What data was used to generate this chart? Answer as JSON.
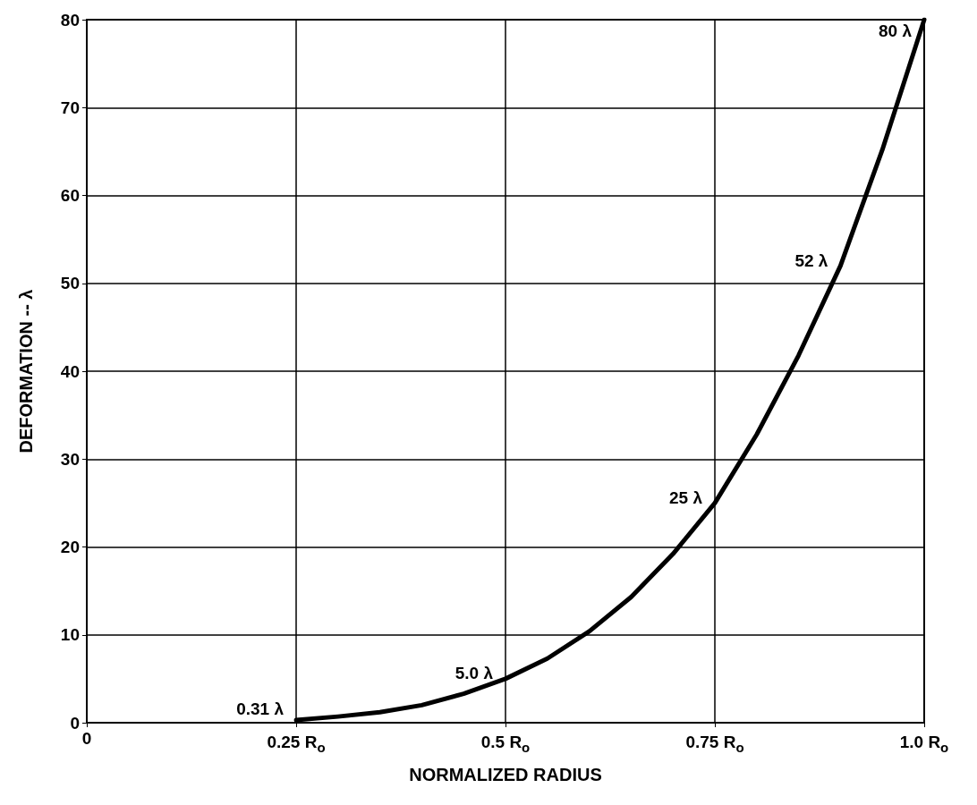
{
  "chart_data": {
    "type": "line",
    "xlabel": "NORMALIZED RADIUS",
    "ylabel": "DEFORMATION -- λ",
    "x": [
      0.25,
      0.3,
      0.35,
      0.4,
      0.45,
      0.5,
      0.55,
      0.6,
      0.65,
      0.7,
      0.75,
      0.8,
      0.85,
      0.9,
      0.95,
      1.0
    ],
    "series": [
      {
        "color": "#000000",
        "values": [
          0.3,
          0.7,
          1.2,
          2.0,
          3.3,
          5.0,
          7.3,
          10.4,
          14.3,
          19.2,
          25,
          32.8,
          41.8,
          52,
          65.2,
          80
        ]
      }
    ],
    "xlim": [
      0,
      1.0
    ],
    "xticks": [
      0,
      {
        "value": 0.25,
        "label": "0.25 R$_{o}$"
      },
      {
        "value": 0.5,
        "label": "0.5 R$_{o}$"
      },
      {
        "value": 0.75,
        "label": "0.75 R$_{o}$"
      },
      {
        "value": 1.0,
        "label": "1.0 R$_{o}$"
      }
    ],
    "ylim": [
      0,
      80
    ],
    "yticks": [
      0,
      10,
      20,
      30,
      40,
      50,
      60,
      70,
      80
    ],
    "annotations": [
      {
        "text": "0.31 λ",
        "x": 0.25,
        "y": 0.31
      },
      {
        "text": "5.0 λ",
        "x": 0.5,
        "y": 5.0
      },
      {
        "text": "25 λ",
        "x": 0.75,
        "y": 25
      },
      {
        "text": "52 λ",
        "x": 0.9,
        "y": 52
      },
      {
        "text": "80 λ",
        "x": 1.0,
        "y": 80
      }
    ],
    "grid": true,
    "marker": "none",
    "line_style": "solid"
  }
}
